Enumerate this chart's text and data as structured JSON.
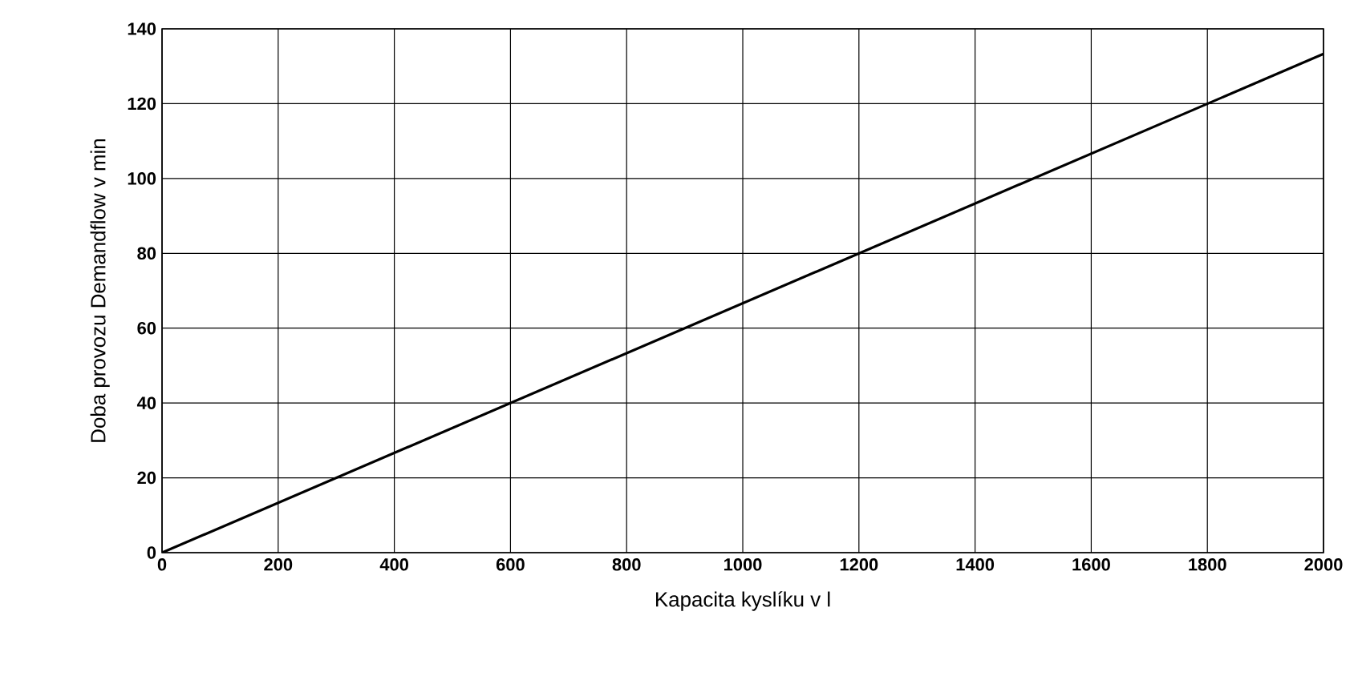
{
  "chart_data": {
    "type": "line",
    "xlabel": "Kapacita kyslíku v l",
    "ylabel": "Doba provozu Demandflow v min",
    "x": [
      0,
      2000
    ],
    "series": [
      {
        "color": "#000000",
        "values": [
          0,
          133.3
        ]
      }
    ],
    "xlim": [
      0,
      2000
    ],
    "xticks": [
      0,
      200,
      400,
      600,
      800,
      1000,
      1200,
      1400,
      1600,
      1800,
      2000
    ],
    "ylim": [
      0,
      140
    ],
    "yticks": [
      0,
      20,
      40,
      60,
      80,
      100,
      120,
      140
    ],
    "grid": true,
    "marker": "none",
    "line_style": "solid"
  }
}
